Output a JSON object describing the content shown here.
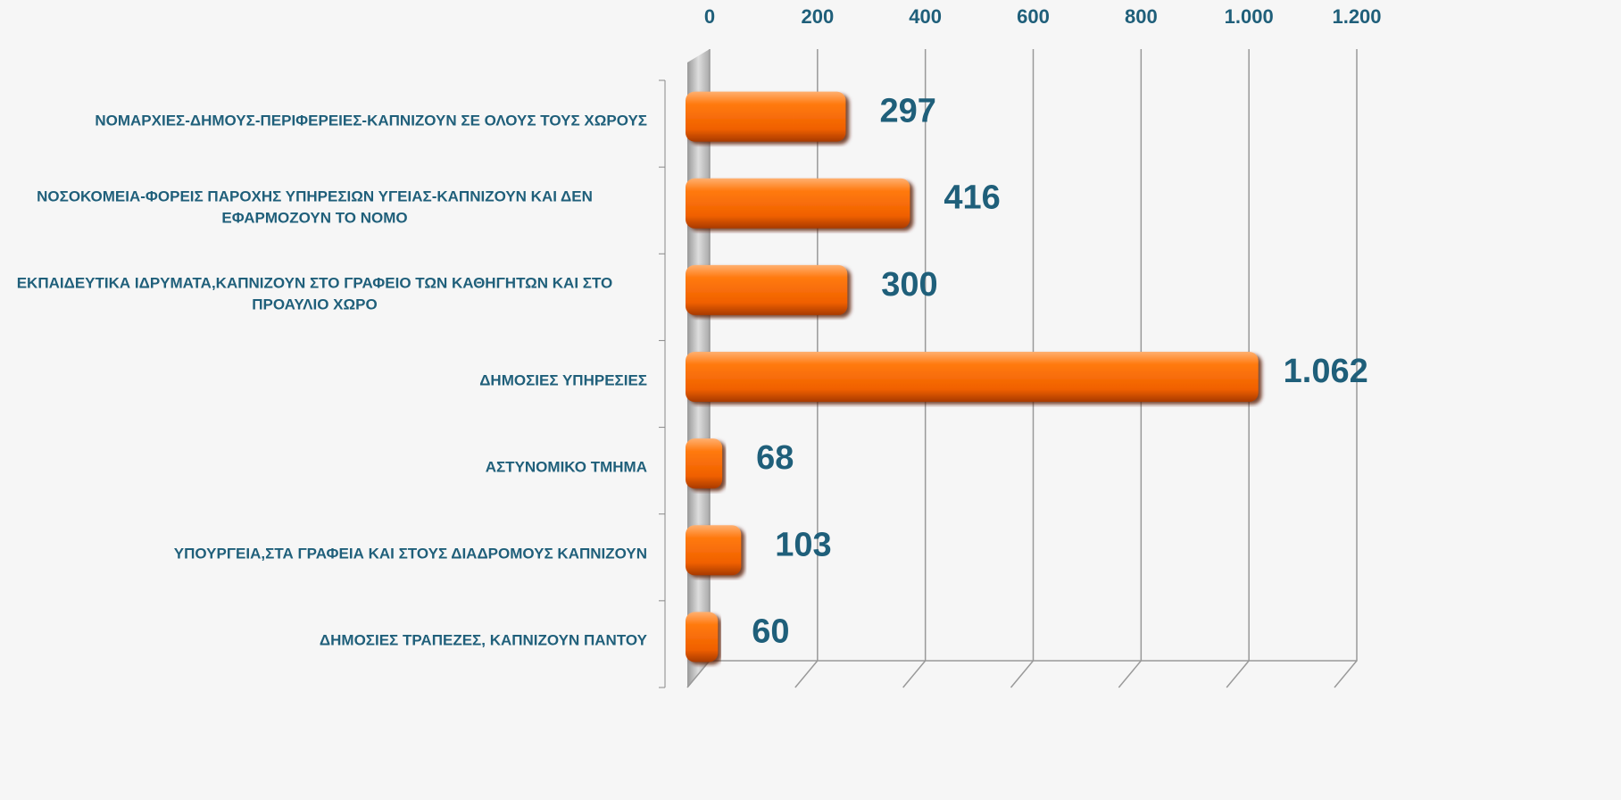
{
  "chart_data": {
    "type": "bar",
    "orientation": "horizontal",
    "categories": [
      "ΝΟΜΑΡΧΙΕΣ-ΔΗΜΟΥΣ-ΠΕΡΙΦΕΡΕΙΕΣ-ΚΑΠΝΙΖΟΥΝ ΣΕ ΟΛΟΥΣ ΤΟΥΣ ΧΩΡΟΥΣ",
      "ΝΟΣΟΚΟΜΕΙΑ-ΦΟΡΕΙΣ ΠΑΡΟΧΗΣ ΥΠΗΡΕΣΙΩΝ ΥΓΕΙΑΣ-ΚΑΠΝΙΖΟΥΝ ΚΑΙ ΔΕΝ ΕΦΑΡΜΟΖΟΥΝ ΤΟ ΝΟΜΟ",
      "ΕΚΠΑΙΔΕΥΤΙΚΑ ΙΔΡΥΜΑΤΑ,ΚΑΠΝΙΖΟΥΝ ΣΤΟ ΓΡΑΦΕΙΟ ΤΩΝ ΚΑΘΗΓΗΤΩΝ ΚΑΙ ΣΤΟ ΠΡΟΑΥΛΙΟ ΧΩΡΟ",
      "ΔΗΜΟΣΙΕΣ ΥΠΗΡΕΣΙΕΣ",
      "ΑΣΤΥΝΟΜΙΚΟ ΤΜΗΜΑ",
      "ΥΠΟΥΡΓΕΙΑ,ΣΤΑ ΓΡΑΦΕΙΑ ΚΑΙ ΣΤΟΥΣ ΔΙΑΔΡΟΜΟΥΣ ΚΑΠΝΙΖΟΥΝ",
      "ΔΗΜΟΣΙΕΣ  ΤΡΑΠΕΖΕΣ, ΚΑΠΝΙΖΟΥΝ ΠΑΝΤΟΥ"
    ],
    "values": [
      297,
      416,
      300,
      1062,
      68,
      103,
      60
    ],
    "value_labels": [
      "297",
      "416",
      "300",
      "1.062",
      "68",
      "103",
      "60"
    ],
    "color": "#ff6a00",
    "xlim": [
      0,
      1200
    ],
    "xticks": [
      0,
      200,
      400,
      600,
      800,
      {
        "value": 1000,
        "label": "1.000"
      },
      {
        "value": 1200,
        "label": "1.200"
      }
    ],
    "grid": true
  }
}
